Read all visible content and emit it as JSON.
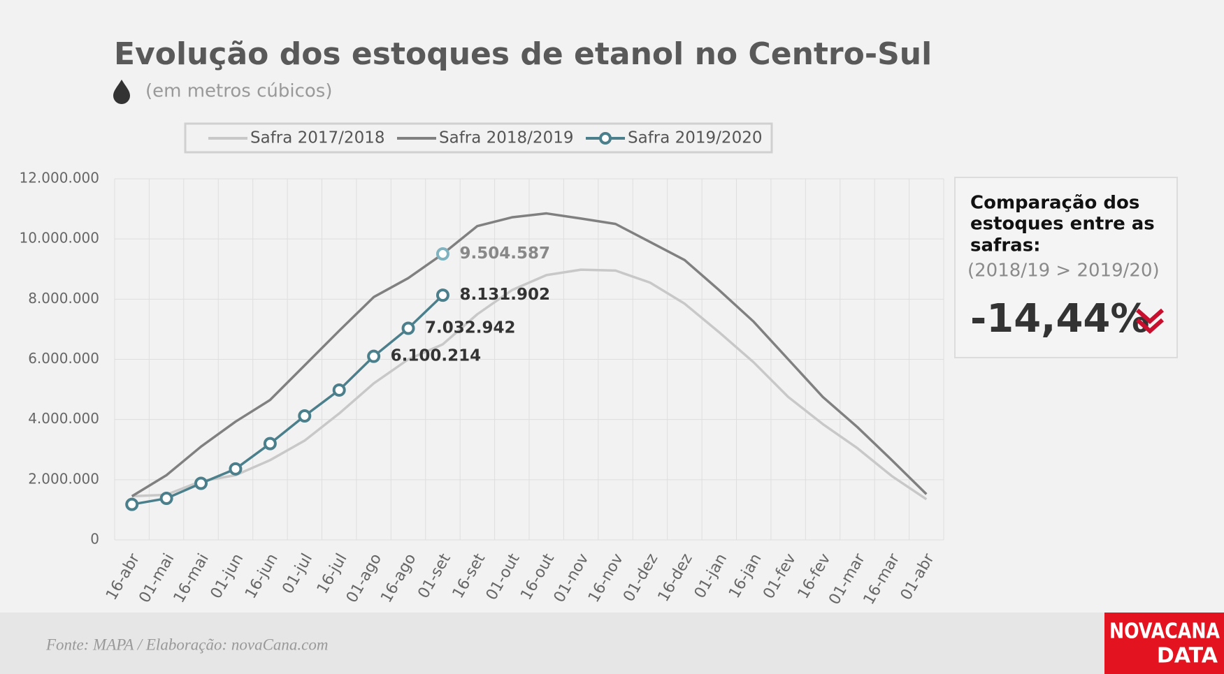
{
  "chart_data": {
    "type": "line",
    "title": "Evolução dos estoques de etanol no Centro-Sul",
    "subtitle": "(em metros cúbicos)",
    "categories": [
      "16-abr",
      "01-mai",
      "16-mai",
      "01-jun",
      "16-jun",
      "01-jul",
      "16-jul",
      "01-ago",
      "16-ago",
      "01-set",
      "16-set",
      "01-out",
      "16-out",
      "01-nov",
      "16-nov",
      "01-dez",
      "16-dez",
      "01-jan",
      "16-jan",
      "01-fev",
      "16-fev",
      "01-mar",
      "16-mar",
      "01-abr"
    ],
    "series": [
      {
        "name": "Safra 2017/2018",
        "color": "#c8c8c8",
        "marker": false,
        "values": [
          1450000,
          1500000,
          1950000,
          2150000,
          2650000,
          3300000,
          4200000,
          5200000,
          6000000,
          6500000,
          7500000,
          8300000,
          8800000,
          8980000,
          8950000,
          8550000,
          7850000,
          6900000,
          5900000,
          4750000,
          3850000,
          3050000,
          2120000,
          1350000
        ]
      },
      {
        "name": "Safra 2018/2019",
        "color": "#808080",
        "marker": false,
        "label_marker_color": "#7fb3c0",
        "values": [
          1450000,
          2150000,
          3100000,
          3930000,
          4650000,
          5800000,
          6950000,
          8070000,
          8700000,
          9504587,
          10430000,
          10720000,
          10850000,
          10680000,
          10500000,
          9900000,
          9300000,
          8300000,
          7250000,
          6000000,
          4750000,
          3750000,
          2650000,
          1520000
        ],
        "value_labels": [
          null,
          null,
          null,
          null,
          null,
          null,
          null,
          null,
          null,
          "9.504.587",
          null,
          null,
          null,
          null,
          null,
          null,
          null,
          null,
          null,
          null,
          null,
          null,
          null,
          null
        ]
      },
      {
        "name": "Safra 2019/2020",
        "color": "#4a7f8b",
        "marker": true,
        "values": [
          1180000,
          1380000,
          1880000,
          2360000,
          3200000,
          4120000,
          4980000,
          6100214,
          7032942,
          8131902,
          null,
          null,
          null,
          null,
          null,
          null,
          null,
          null,
          null,
          null,
          null,
          null,
          null,
          null
        ],
        "value_labels": [
          null,
          null,
          null,
          null,
          null,
          null,
          null,
          "6.100.214",
          "7.032.942",
          "8.131.902",
          null,
          null,
          null,
          null,
          null,
          null,
          null,
          null,
          null,
          null,
          null,
          null,
          null,
          null
        ]
      }
    ],
    "ylim": [
      0,
      12000000
    ],
    "yticks": [
      0,
      {
        "value": 2000000,
        "label": "2.000.000"
      },
      {
        "value": 4000000,
        "label": "4.000.000"
      },
      {
        "value": 6000000,
        "label": "6.000.000"
      },
      {
        "value": 8000000,
        "label": "8.000.000"
      },
      {
        "value": 10000000,
        "label": "10.000.000"
      },
      {
        "value": 12000000,
        "label": "12.000.000"
      }
    ],
    "grid": true,
    "legend": "top"
  },
  "comparison": {
    "heading": [
      "Comparação dos",
      "estoques entre as",
      "safras:"
    ],
    "note": "(2018/19 > 2019/20)",
    "value": "-14,44%"
  },
  "footer": {
    "source": "Fonte: MAPA  / Elaboração: novaCana.com",
    "logo": [
      "NOVACANA",
      "DATA"
    ]
  }
}
